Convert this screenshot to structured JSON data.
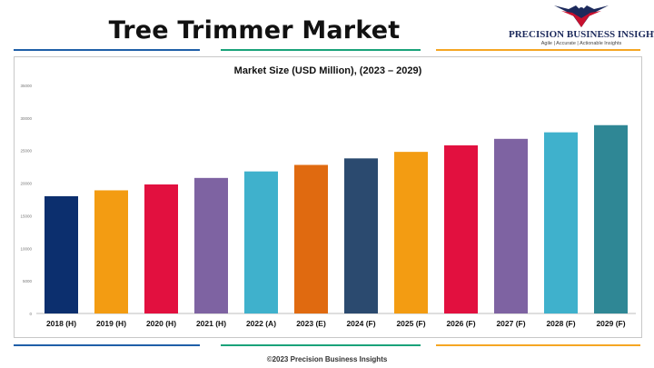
{
  "page": {
    "title": "Tree Trimmer Market",
    "footer": "©2023 Precision Business Insights"
  },
  "logo": {
    "name": "PRECISION BUSINESS INSIGHTS",
    "tagline": "Agile | Accurate | Actionable Insights",
    "icon": "eagle-logo-icon",
    "colors": [
      "#1c2a5c",
      "#c8102e"
    ]
  },
  "divider_colors": [
    "#1f5fa8",
    "#1aa37a",
    "#f5a623"
  ],
  "chart_data": {
    "type": "bar",
    "title": "Market Size (USD Million), (2023 – 2029)",
    "xlabel": "",
    "ylabel": "",
    "categories": [
      "2018 (H)",
      "2019 (H)",
      "2020 (H)",
      "2021 (H)",
      "2022 (A)",
      "2023 (E)",
      "2024 (F)",
      "2025 (F)",
      "2026 (F)",
      "2027 (F)",
      "2028 (F)",
      "2029 (F)"
    ],
    "values": [
      18000,
      18900,
      19800,
      20800,
      21800,
      22800,
      23800,
      24800,
      25800,
      26800,
      27800,
      28900
    ],
    "colors": [
      "#0c2f6e",
      "#f39c12",
      "#e2103f",
      "#7e63a2",
      "#3fb1cc",
      "#e06a10",
      "#2b4a6f",
      "#f39c12",
      "#e2103f",
      "#7e63a2",
      "#3fb1cc",
      "#2f8795"
    ],
    "ylim": [
      0,
      35000
    ],
    "yticks": [
      "0",
      "5000",
      "10000",
      "15000",
      "20000",
      "25000",
      "30000",
      "35000"
    ],
    "grid": false,
    "legend": "none"
  }
}
